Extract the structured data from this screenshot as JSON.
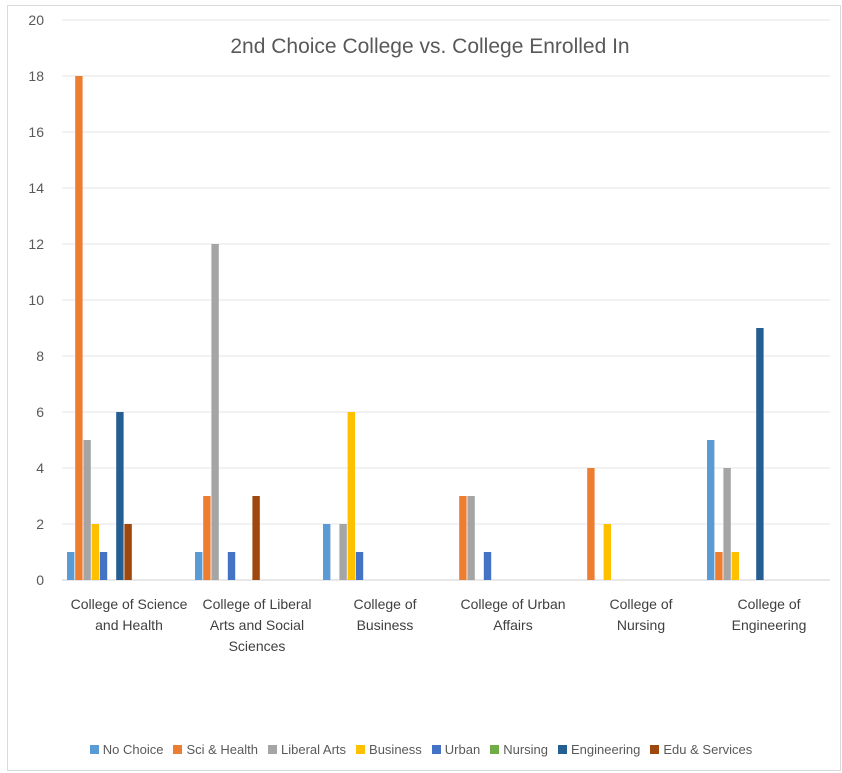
{
  "chart_data": {
    "type": "bar",
    "title": "2nd Choice College vs. College Enrolled In",
    "xlabel": "",
    "ylabel": "",
    "ylim": [
      0,
      20
    ],
    "yticks": [
      0,
      2,
      4,
      6,
      8,
      10,
      12,
      14,
      16,
      18,
      20
    ],
    "grid": true,
    "legend_position": "bottom",
    "categories": [
      "College of Science and Health",
      "College of Liberal Arts and Social Sciences",
      "College of Business",
      "College of Urban Affairs",
      "College of Nursing",
      "College of Engineering"
    ],
    "category_lines": [
      [
        "College of Science",
        "and Health"
      ],
      [
        "College of Liberal",
        "Arts and Social",
        "Sciences"
      ],
      [
        "College of",
        "Business"
      ],
      [
        "College of Urban",
        "Affairs"
      ],
      [
        "College of",
        "Nursing"
      ],
      [
        "College of",
        "Engineering"
      ]
    ],
    "series": [
      {
        "name": "No Choice",
        "color": "#5b9bd5",
        "values": [
          1,
          1,
          2,
          0,
          0,
          5
        ]
      },
      {
        "name": "Sci & Health",
        "color": "#ed7d31",
        "values": [
          18,
          3,
          0,
          3,
          4,
          1
        ]
      },
      {
        "name": "Liberal Arts",
        "color": "#a5a5a5",
        "values": [
          5,
          12,
          2,
          3,
          0,
          4
        ]
      },
      {
        "name": "Business",
        "color": "#ffc000",
        "values": [
          2,
          0,
          6,
          0,
          2,
          1
        ]
      },
      {
        "name": "Urban",
        "color": "#4472c4",
        "values": [
          1,
          1,
          1,
          1,
          0,
          0
        ]
      },
      {
        "name": "Nursing",
        "color": "#70ad47",
        "values": [
          0,
          0,
          0,
          0,
          0,
          0
        ]
      },
      {
        "name": "Engineering",
        "color": "#255e91",
        "values": [
          6,
          0,
          0,
          0,
          0,
          9
        ]
      },
      {
        "name": "Edu & Services",
        "color": "#9e480e",
        "values": [
          2,
          3,
          0,
          0,
          0,
          0
        ]
      }
    ]
  }
}
